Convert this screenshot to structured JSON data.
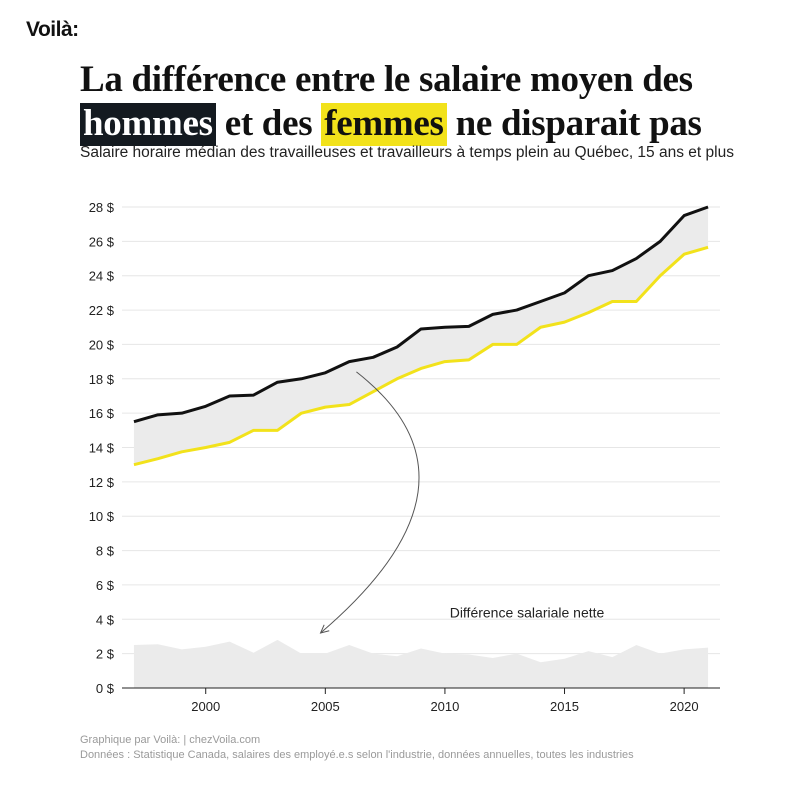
{
  "brand": "Voilà:",
  "title": {
    "part1": "La différence entre le salaire moyen des",
    "men_word": "hommes",
    "part2": "et des",
    "women_word": "femmes",
    "part3": "ne disparait pas"
  },
  "subtitle": "Salaire horaire médian des travailleuses et travailleurs à temps plein au Québec, 15 ans et plus",
  "footer": {
    "credit": "Graphique par Voilà: | chezVoila.com",
    "source": "Données : Statistique Canada, salaires des employé.e.s selon l'industrie, données annuelles, toutes les industries"
  },
  "colors": {
    "men": "#111111",
    "women": "#f2e21b",
    "fill": "#ebebeb",
    "grid": "#e6e6e6"
  },
  "chart_data": {
    "type": "line",
    "title": "La différence entre le salaire moyen des hommes et des femmes ne disparait pas",
    "subtitle": "Salaire horaire médian des travailleuses et travailleurs à temps plein au Québec, 15 ans et plus",
    "xlabel": "",
    "ylabel": "",
    "x": [
      1997,
      1998,
      1999,
      2000,
      2001,
      2002,
      2003,
      2004,
      2005,
      2006,
      2007,
      2008,
      2009,
      2010,
      2011,
      2012,
      2013,
      2014,
      2015,
      2016,
      2017,
      2018,
      2019,
      2020,
      2021
    ],
    "xlim": [
      1996.5,
      2021.5
    ],
    "ylim": [
      0,
      28
    ],
    "y_ticks": [
      0,
      2,
      4,
      6,
      8,
      10,
      12,
      14,
      16,
      18,
      20,
      22,
      24,
      26,
      28
    ],
    "y_tick_labels": [
      "0 $",
      "2 $",
      "4 $",
      "6 $",
      "8 $",
      "10 $",
      "12 $",
      "14 $",
      "16 $",
      "18 $",
      "20 $",
      "22 $",
      "24 $",
      "26 $",
      "28 $"
    ],
    "x_ticks": [
      2000,
      2005,
      2010,
      2015,
      2020
    ],
    "x_tick_labels": [
      "2000",
      "2005",
      "2010",
      "2015",
      "2020"
    ],
    "grid": true,
    "series": [
      {
        "key": "men",
        "color": "#111111",
        "values": [
          15.5,
          15.9,
          16.0,
          16.4,
          17.0,
          17.05,
          17.8,
          18.0,
          18.35,
          19.0,
          19.25,
          19.85,
          20.9,
          21.0,
          21.05,
          21.75,
          22.0,
          22.5,
          23.0,
          24.0,
          24.3,
          25.0,
          26.0,
          27.5,
          28.0
        ]
      },
      {
        "key": "women",
        "color": "#f2e21b",
        "values": [
          13.0,
          13.35,
          13.75,
          14.0,
          14.3,
          15.0,
          15.0,
          16.0,
          16.35,
          16.5,
          17.25,
          18.0,
          18.6,
          19.0,
          19.1,
          20.0,
          20.0,
          21.0,
          21.3,
          21.85,
          22.5,
          22.5,
          24.0,
          25.25,
          25.65
        ]
      }
    ],
    "difference": {
      "label": "Différence salariale nette",
      "values": [
        2.5,
        2.55,
        2.25,
        2.4,
        2.7,
        2.05,
        2.8,
        2.0,
        2.0,
        2.5,
        2.0,
        1.85,
        2.3,
        2.0,
        1.95,
        1.75,
        2.0,
        1.5,
        1.7,
        2.15,
        1.8,
        2.5,
        2.0,
        2.25,
        2.35
      ]
    }
  }
}
